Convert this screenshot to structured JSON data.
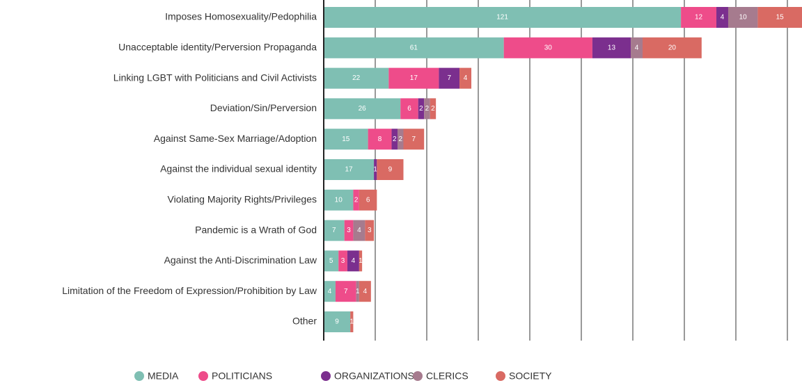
{
  "chart_data": {
    "type": "stacked-barh",
    "categories": [
      "Imposes Homosexuality/Pedophilia",
      "Unacceptable identity/Perversion Propaganda",
      "Linking LGBT with Politicians and Civil Activists",
      "Deviation/Sin/Perversion",
      "Against Same-Sex Marriage/Adoption",
      "Against the individual sexual identity",
      "Violating Majority Rights/Privileges",
      "Pandemic is a Wrath of God",
      "Against the Anti-Discrimination Law",
      "Limitation of the Freedom of Expression/Prohibition by Law",
      "Other"
    ],
    "series": [
      {
        "name": "MEDIA",
        "color": "#7fbfb3",
        "values": [
          121,
          61,
          22,
          26,
          15,
          17,
          10,
          7,
          5,
          4,
          9
        ]
      },
      {
        "name": "POLITICIANS",
        "color": "#ee4c8a",
        "values": [
          12,
          30,
          17,
          6,
          8,
          null,
          2,
          3,
          3,
          7,
          null
        ]
      },
      {
        "name": "ORGANIZATIONS",
        "color": "#7b2f8e",
        "values": [
          4,
          13,
          7,
          2,
          2,
          1,
          null,
          null,
          4,
          null,
          null
        ]
      },
      {
        "name": "CLERICS",
        "color": "#a67b8e",
        "values": [
          10,
          4,
          null,
          2,
          2,
          null,
          null,
          4,
          null,
          1,
          null
        ]
      },
      {
        "name": "SOCIETY",
        "color": "#d96a63",
        "values": [
          15,
          20,
          4,
          2,
          7,
          9,
          6,
          3,
          1,
          4,
          1
        ]
      }
    ],
    "xlim": [
      0,
      162
    ],
    "grid": true
  }
}
